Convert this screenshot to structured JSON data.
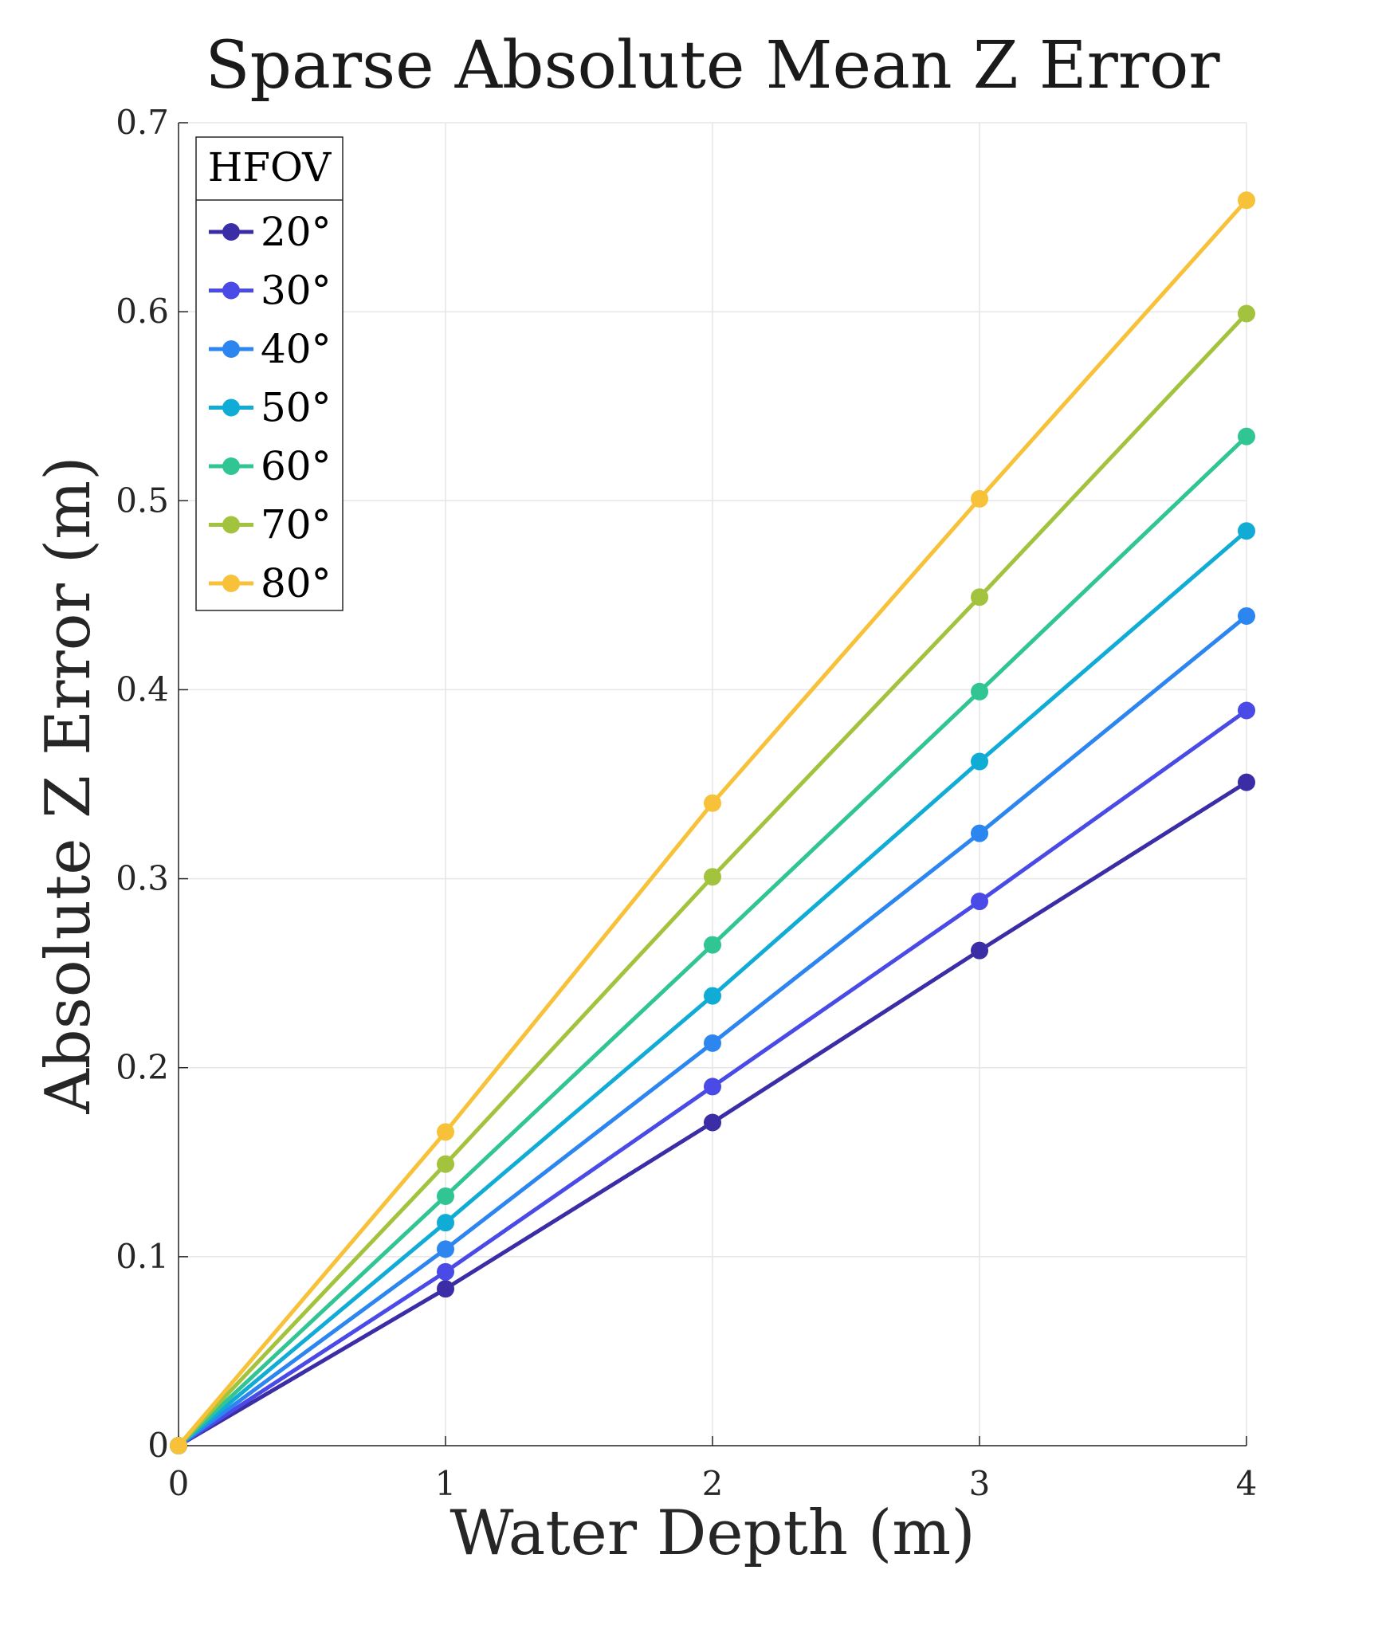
{
  "chart_data": {
    "type": "line",
    "title": "Sparse Absolute Mean Z Error",
    "xlabel": "Water Depth (m)",
    "ylabel": "Absolute Z Error (m)",
    "xlim": [
      0,
      4
    ],
    "ylim": [
      0,
      0.7
    ],
    "xticks": [
      "0",
      "1",
      "2",
      "3",
      "4"
    ],
    "yticks": [
      "0",
      "0.1",
      "0.2",
      "0.3",
      "0.4",
      "0.5",
      "0.6",
      "0.7"
    ],
    "grid": true,
    "legend_title": "HFOV",
    "legend_position": "top-left",
    "x": [
      0,
      1,
      2,
      3,
      4
    ],
    "series": [
      {
        "name": "20°",
        "color": "#3a2da6",
        "values": [
          0,
          0.083,
          0.171,
          0.262,
          0.351
        ]
      },
      {
        "name": "30°",
        "color": "#4a4ae6",
        "values": [
          0,
          0.092,
          0.19,
          0.288,
          0.389
        ]
      },
      {
        "name": "40°",
        "color": "#2d86f0",
        "values": [
          0,
          0.104,
          0.213,
          0.324,
          0.439
        ]
      },
      {
        "name": "50°",
        "color": "#11acd5",
        "values": [
          0,
          0.118,
          0.238,
          0.362,
          0.484
        ]
      },
      {
        "name": "60°",
        "color": "#31c594",
        "values": [
          0,
          0.132,
          0.265,
          0.399,
          0.534
        ]
      },
      {
        "name": "70°",
        "color": "#a3c23d",
        "values": [
          0,
          0.149,
          0.301,
          0.449,
          0.599
        ]
      },
      {
        "name": "80°",
        "color": "#f7c239",
        "values": [
          0,
          0.166,
          0.34,
          0.501,
          0.659
        ]
      }
    ]
  }
}
